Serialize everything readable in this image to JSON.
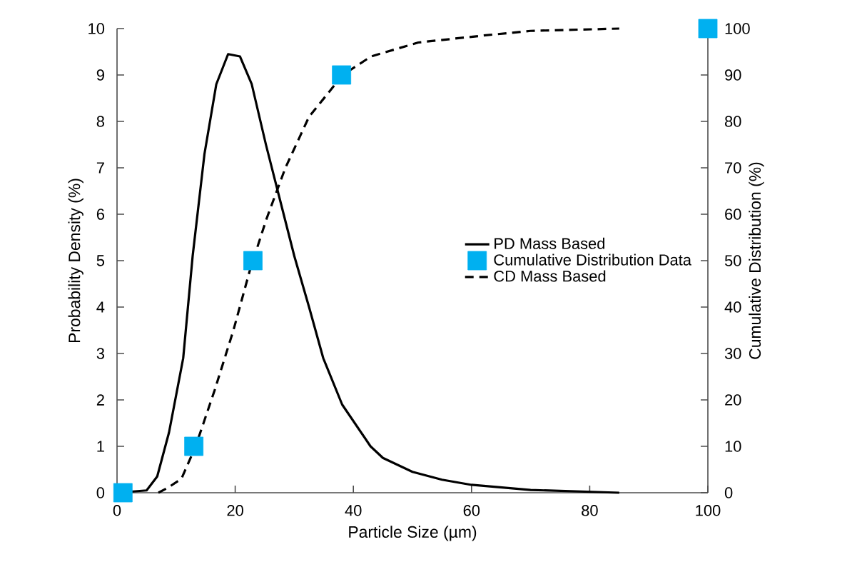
{
  "chart_data": {
    "type": "line",
    "xlabel": "Particle Size (µm)",
    "ylabel": "Probability Density (%)",
    "y2label": "Cumulative Distribution (%)",
    "xlim": [
      0,
      100
    ],
    "xticks": [
      0,
      20,
      40,
      60,
      80,
      100
    ],
    "ylim": [
      0,
      10
    ],
    "yticks": [
      0,
      1,
      2,
      3,
      4,
      5,
      6,
      7,
      8,
      9,
      10
    ],
    "y2lim": [
      0,
      100
    ],
    "y2ticks": [
      0,
      10,
      20,
      30,
      40,
      50,
      60,
      70,
      80,
      90,
      100
    ],
    "grid": false,
    "legend": "right",
    "series": [
      {
        "name": "PD Mass Based",
        "axis": "y",
        "color": "#000000",
        "line_style": "solid",
        "marker": "none",
        "x": [
          0,
          5,
          6.8,
          8.8,
          11.2,
          12.8,
          14.8,
          16.8,
          18.8,
          20.8,
          22.8,
          25.2,
          27.6,
          30,
          32.5,
          34.9,
          38.1,
          42.9,
          45,
          50,
          55,
          60,
          70,
          85
        ],
        "values": [
          0,
          0.05,
          0.35,
          1.3,
          2.9,
          5.1,
          7.3,
          8.8,
          9.45,
          9.4,
          8.8,
          7.5,
          6.3,
          5.1,
          4,
          2.9,
          1.9,
          1,
          0.75,
          0.45,
          0.28,
          0.17,
          0.06,
          0
        ]
      },
      {
        "name": "Cumulative Distribution Data",
        "type": "scatter",
        "axis": "y2",
        "color": "#00b0f0",
        "marker": "square",
        "x": [
          1,
          13,
          23,
          38,
          100
        ],
        "values": [
          0,
          10,
          50,
          90,
          100
        ]
      },
      {
        "name": "CD Mass Based",
        "axis": "y2",
        "color": "#000000",
        "line_style": "dashed",
        "marker": "none",
        "x": [
          7,
          8.5,
          10.9,
          13.3,
          16.5,
          19.7,
          22.5,
          25.3,
          28.5,
          32.5,
          38.2,
          43,
          51,
          62,
          70,
          85
        ],
        "values": [
          0,
          1,
          3,
          10,
          22,
          35,
          48,
          59,
          70,
          81,
          90,
          94,
          97,
          98.5,
          99.5,
          100
        ]
      }
    ]
  }
}
